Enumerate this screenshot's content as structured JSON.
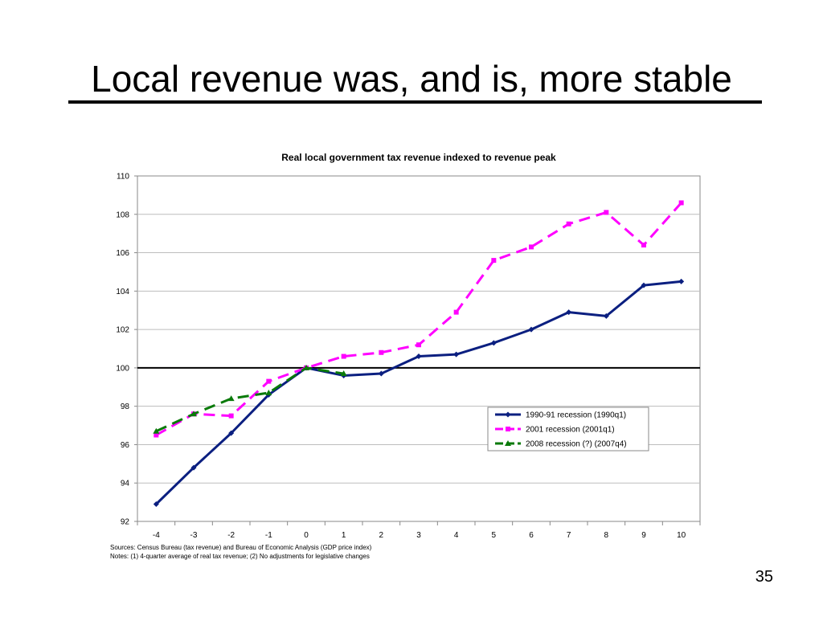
{
  "slide": {
    "title": "Local revenue was, and is, more stable",
    "page_number": "35",
    "sources": "Sources: Census Bureau (tax revenue) and Bureau of Economic Analysis (GDP price index)",
    "notes": "Notes: (1) 4-quarter average of real tax revenue; (2) No adjustments for legislative changes"
  },
  "chart_data": {
    "type": "line",
    "title": "Real local government tax revenue indexed to revenue peak",
    "xlabel": "",
    "ylabel": "",
    "categories": [
      "-4",
      "-3",
      "-2",
      "-1",
      "0",
      "1",
      "2",
      "3",
      "4",
      "5",
      "6",
      "7",
      "8",
      "9",
      "10"
    ],
    "x": [
      -4,
      -3,
      -2,
      -1,
      0,
      1,
      2,
      3,
      4,
      5,
      6,
      7,
      8,
      9,
      10
    ],
    "ylim": [
      92,
      110
    ],
    "yticks": [
      "92",
      "94",
      "96",
      "98",
      "100",
      "102",
      "104",
      "106",
      "108",
      "110"
    ],
    "reference_line": 100,
    "grid": true,
    "legend_position": "lower-right",
    "series": [
      {
        "name": "1990-91 recession (1990q1)",
        "color": "#0b1f80",
        "style": "solid",
        "marker": "diamond",
        "values": [
          92.9,
          94.8,
          96.6,
          98.6,
          100.0,
          99.6,
          99.7,
          100.6,
          100.7,
          101.3,
          102.0,
          102.9,
          102.7,
          104.3,
          104.5
        ]
      },
      {
        "name": "2001 recession (2001q1)",
        "color": "#ff00ff",
        "style": "dashed",
        "marker": "square",
        "values": [
          96.5,
          97.6,
          97.5,
          99.3,
          100.0,
          100.6,
          100.8,
          101.2,
          102.9,
          105.6,
          106.3,
          107.5,
          108.1,
          106.4,
          108.6
        ]
      },
      {
        "name": "2008 recession (?) (2007q4)",
        "color": "#0a7a0a",
        "style": "dashed",
        "marker": "triangle",
        "values": [
          96.7,
          97.6,
          98.4,
          98.7,
          100.0,
          99.7,
          null,
          null,
          null,
          null,
          null,
          null,
          null,
          null,
          null
        ]
      }
    ]
  }
}
